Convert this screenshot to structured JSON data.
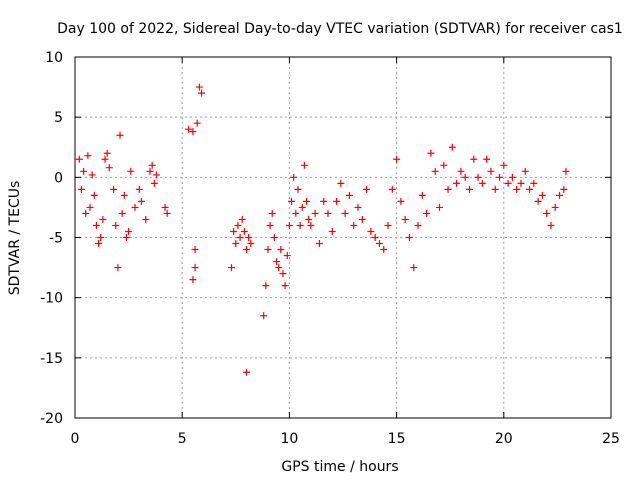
{
  "chart_data": {
    "type": "scatter",
    "title": "Day 100 of 2022, Sidereal Day-to-day VTEC variation (SDTVAR) for receiver cas1",
    "xlabel": "GPS time / hours",
    "ylabel": "SDTVAR / TECUs",
    "xlim": [
      0,
      25
    ],
    "ylim": [
      -20,
      10
    ],
    "xticks": [
      0,
      5,
      10,
      15,
      20,
      25
    ],
    "yticks": [
      -20,
      -15,
      -10,
      -5,
      0,
      5,
      10
    ],
    "xtick_labels": [
      "0",
      "5",
      "10",
      "15",
      "20",
      "25"
    ],
    "ytick_labels": [
      "-20",
      "-15",
      "-10",
      "-5",
      "0",
      "5",
      "10"
    ],
    "grid": true,
    "marker": "+",
    "color": "#ff0000",
    "series": [
      {
        "name": "SDTVAR",
        "x": [
          0.2,
          0.3,
          0.4,
          0.5,
          0.6,
          0.7,
          0.8,
          0.9,
          1.0,
          1.1,
          1.2,
          1.3,
          1.4,
          1.5,
          1.6,
          1.8,
          1.9,
          2.0,
          2.1,
          2.2,
          2.3,
          2.4,
          2.5,
          2.6,
          2.8,
          3.0,
          3.1,
          3.3,
          3.5,
          3.6,
          3.7,
          3.8,
          4.2,
          4.3,
          5.3,
          5.5,
          5.7,
          5.8,
          5.9,
          5.6,
          5.6,
          5.5,
          7.3,
          7.4,
          7.5,
          7.6,
          7.7,
          7.8,
          7.9,
          8.0,
          8.1,
          8.2,
          8.0,
          8.8,
          8.9,
          9.0,
          9.1,
          9.2,
          9.3,
          9.4,
          9.5,
          9.6,
          9.7,
          9.8,
          9.9,
          10.0,
          10.1,
          10.2,
          10.3,
          10.4,
          10.5,
          10.6,
          10.7,
          10.8,
          10.9,
          11.0,
          11.2,
          11.4,
          11.6,
          11.8,
          12.0,
          12.2,
          12.4,
          12.6,
          12.8,
          13.0,
          13.2,
          13.4,
          13.6,
          13.8,
          14.0,
          14.2,
          14.4,
          14.6,
          14.8,
          15.0,
          15.2,
          15.4,
          15.6,
          15.8,
          16.0,
          16.2,
          16.4,
          16.6,
          16.8,
          17.0,
          17.2,
          17.4,
          17.6,
          17.8,
          18.0,
          18.2,
          18.4,
          18.6,
          18.8,
          19.0,
          19.2,
          19.4,
          19.6,
          19.8,
          20.0,
          20.2,
          20.4,
          20.6,
          20.8,
          21.0,
          21.2,
          21.4,
          21.6,
          21.8,
          22.0,
          22.2,
          22.4,
          22.6,
          22.8,
          22.9
        ],
        "y": [
          1.5,
          -1.0,
          0.5,
          -3.0,
          1.8,
          -2.5,
          0.2,
          -1.5,
          -4.0,
          -5.5,
          -5.0,
          -3.5,
          1.5,
          2.0,
          0.8,
          -1.0,
          -4.0,
          -7.5,
          3.5,
          -3.0,
          -1.5,
          -5.0,
          -4.5,
          0.5,
          -2.5,
          -1.0,
          -2.0,
          -3.5,
          0.5,
          1.0,
          -0.5,
          0.2,
          -2.5,
          -3.0,
          4.0,
          3.8,
          4.5,
          7.5,
          7.0,
          -6.0,
          -7.5,
          -8.5,
          -7.5,
          -4.5,
          -5.5,
          -4.0,
          -5.0,
          -3.5,
          -4.5,
          -6.0,
          -5.0,
          -5.5,
          -16.2,
          -11.5,
          -9.0,
          -6.0,
          -4.0,
          -3.0,
          -5.0,
          -7.0,
          -7.5,
          -6.0,
          -8.0,
          -9.0,
          -6.5,
          -4.0,
          -2.0,
          0.0,
          -3.0,
          -1.0,
          -4.0,
          -2.5,
          1.0,
          -2.0,
          -3.5,
          -4.0,
          -3.0,
          -5.5,
          -2.0,
          -3.0,
          -4.5,
          -2.0,
          -0.5,
          -3.0,
          -1.5,
          -4.0,
          -2.5,
          -3.5,
          -1.0,
          -4.5,
          -5.0,
          -5.5,
          -6.0,
          -4.0,
          -1.0,
          1.5,
          -2.0,
          -3.5,
          -5.0,
          -7.5,
          -4.0,
          -1.5,
          -3.0,
          2.0,
          0.5,
          -2.5,
          1.0,
          -1.0,
          2.5,
          -0.5,
          0.5,
          0.0,
          -1.0,
          1.5,
          0.0,
          -0.5,
          1.5,
          0.5,
          -1.0,
          0.0,
          1.0,
          -0.5,
          0.0,
          -1.0,
          -0.5,
          0.5,
          -1.0,
          -0.5,
          -2.0,
          -1.5,
          -3.0,
          -4.0,
          -2.5,
          -1.5,
          -1.0,
          0.5
        ]
      }
    ]
  }
}
